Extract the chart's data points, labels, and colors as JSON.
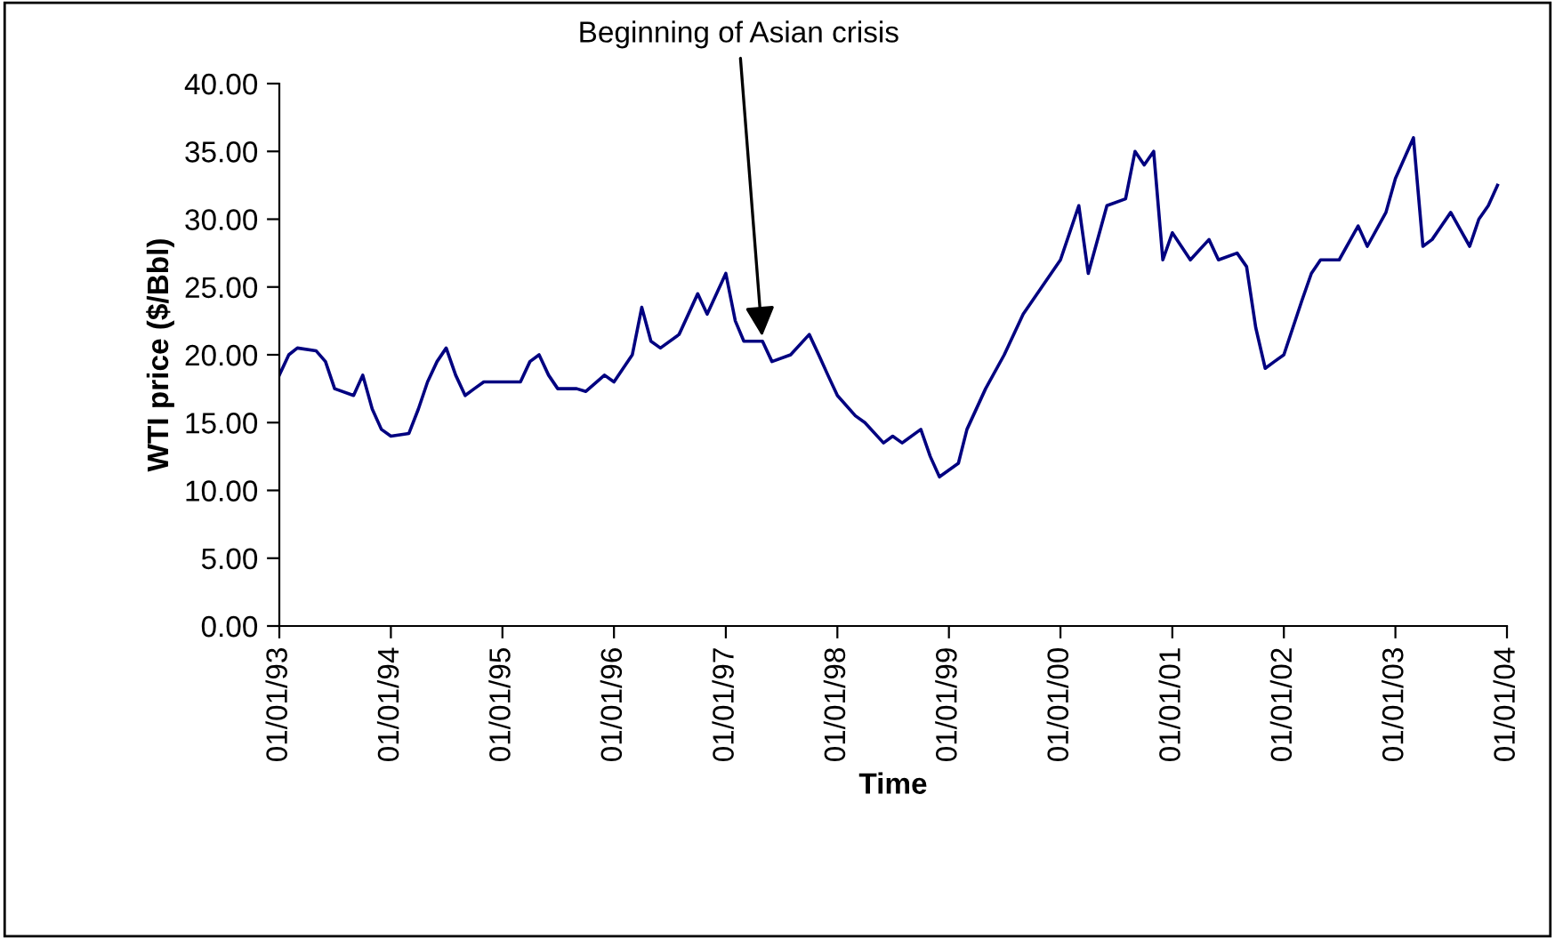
{
  "chart_data": {
    "type": "line",
    "xlabel": "Time",
    "ylabel": "WTI price ($/Bbl)",
    "annotations": [
      {
        "text": "Beginning of Asian crisis",
        "x": "1997-05",
        "y": 21.0
      }
    ],
    "x": [
      "1993-01",
      "1993-02",
      "1993-03",
      "1993-05",
      "1993-06",
      "1993-07",
      "1993-09",
      "1993-10",
      "1993-11",
      "1993-12",
      "1994-01",
      "1994-03",
      "1994-04",
      "1994-05",
      "1994-06",
      "1994-07",
      "1994-08",
      "1994-09",
      "1994-10",
      "1994-11",
      "1995-01",
      "1995-03",
      "1995-04",
      "1995-05",
      "1995-06",
      "1995-07",
      "1995-09",
      "1995-10",
      "1995-12",
      "1996-01",
      "1996-03",
      "1996-04",
      "1996-05",
      "1996-06",
      "1996-08",
      "1996-10",
      "1996-11",
      "1997-01",
      "1997-02",
      "1997-03",
      "1997-05",
      "1997-06",
      "1997-08",
      "1997-10",
      "1997-11",
      "1997-12",
      "1998-01",
      "1998-03",
      "1998-04",
      "1998-06",
      "1998-07",
      "1998-08",
      "1998-10",
      "1998-11",
      "1998-12",
      "1999-02",
      "1999-03",
      "1999-05",
      "1999-07",
      "1999-09",
      "1999-11",
      "2000-01",
      "2000-03",
      "2000-04",
      "2000-06",
      "2000-08",
      "2000-09",
      "2000-10",
      "2000-11",
      "2000-12",
      "2001-01",
      "2001-03",
      "2001-05",
      "2001-06",
      "2001-08",
      "2001-09",
      "2001-10",
      "2001-11",
      "2001-12",
      "2002-01",
      "2002-03",
      "2002-04",
      "2002-05",
      "2002-07",
      "2002-09",
      "2002-10",
      "2002-12",
      "2003-01",
      "2003-03",
      "2003-04",
      "2003-05",
      "2003-07",
      "2003-09",
      "2003-10",
      "2003-11",
      "2003-12"
    ],
    "series": [
      {
        "color": "#000080",
        "values": [
          18.5,
          20.0,
          20.5,
          20.3,
          19.5,
          17.5,
          17.0,
          18.5,
          16.0,
          14.5,
          14.0,
          14.2,
          16.0,
          18.0,
          19.5,
          20.5,
          18.5,
          17.0,
          17.5,
          18.0,
          18.0,
          18.0,
          19.5,
          20.0,
          18.5,
          17.5,
          17.5,
          17.3,
          18.5,
          18.0,
          20.0,
          23.5,
          21.0,
          20.5,
          21.5,
          24.5,
          23.0,
          26.0,
          22.5,
          21.0,
          21.0,
          19.5,
          20.0,
          21.5,
          20.0,
          18.5,
          17.0,
          15.5,
          15.0,
          13.5,
          14.0,
          13.5,
          14.5,
          12.5,
          11.0,
          12.0,
          14.5,
          17.5,
          20.0,
          23.0,
          25.0,
          27.0,
          31.0,
          26.0,
          31.0,
          31.5,
          35.0,
          34.0,
          35.0,
          27.0,
          29.0,
          27.0,
          28.5,
          27.0,
          27.5,
          26.5,
          22.0,
          19.0,
          19.5,
          20.0,
          24.0,
          26.0,
          27.0,
          27.0,
          29.5,
          28.0,
          30.5,
          33.0,
          36.0,
          28.0,
          28.5,
          30.5,
          28.0,
          30.0,
          31.0,
          32.5
        ]
      }
    ],
    "xlim": [
      "1993-01-01",
      "2004-01-01"
    ],
    "xticks": [
      {
        "value": "1993-01-01",
        "label": "01/01/93"
      },
      {
        "value": "1994-01-01",
        "label": "01/01/94"
      },
      {
        "value": "1995-01-01",
        "label": "01/01/95"
      },
      {
        "value": "1996-01-01",
        "label": "01/01/96"
      },
      {
        "value": "1997-01-01",
        "label": "01/01/97"
      },
      {
        "value": "1998-01-01",
        "label": "01/01/98"
      },
      {
        "value": "1999-01-01",
        "label": "01/01/99"
      },
      {
        "value": "2000-01-01",
        "label": "01/01/00"
      },
      {
        "value": "2001-01-01",
        "label": "01/01/01"
      },
      {
        "value": "2002-01-01",
        "label": "01/01/02"
      },
      {
        "value": "2003-01-01",
        "label": "01/01/03"
      },
      {
        "value": "2004-01-01",
        "label": "01/01/04"
      }
    ],
    "ylim": [
      0,
      40
    ],
    "yticks": [
      {
        "value": 0,
        "label": "0.00"
      },
      {
        "value": 5,
        "label": "5.00"
      },
      {
        "value": 10,
        "label": "10.00"
      },
      {
        "value": 15,
        "label": "15.00"
      },
      {
        "value": 20,
        "label": "20.00"
      },
      {
        "value": 25,
        "label": "25.00"
      },
      {
        "value": 30,
        "label": "30.00"
      },
      {
        "value": 35,
        "label": "35.00"
      },
      {
        "value": 40,
        "label": "40.00"
      }
    ],
    "grid": false,
    "legend": false
  }
}
